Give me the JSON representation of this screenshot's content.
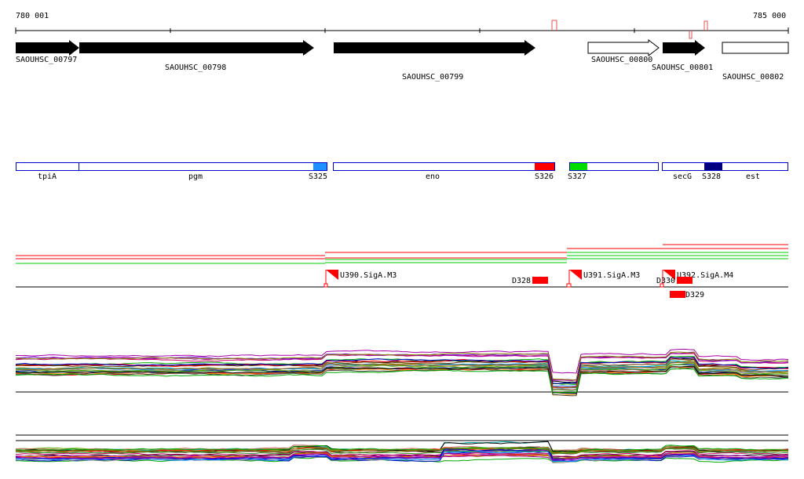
{
  "ruler": {
    "start_label": "780 001",
    "end_label": "785 000"
  },
  "genes": [
    {
      "label": "SAOUHSC_00797",
      "strand": "+",
      "filled": true
    },
    {
      "label": "SAOUHSC_00798",
      "strand": "+",
      "filled": true
    },
    {
      "label": "SAOUHSC_00799",
      "strand": "+",
      "filled": true
    },
    {
      "label": "SAOUHSC_00800",
      "strand": "+",
      "filled": false
    },
    {
      "label": "SAOUHSC_00801",
      "strand": "+",
      "filled": true
    },
    {
      "label": "SAOUHSC_00802",
      "strand": "+",
      "filled": false
    }
  ],
  "segments": [
    {
      "label": "tpiA"
    },
    {
      "label": "pgm"
    },
    {
      "label": "eno"
    },
    {
      "label": "secG"
    },
    {
      "label": "est"
    }
  ],
  "markers": [
    {
      "label": "S325",
      "color": "#1e90ff"
    },
    {
      "label": "S326",
      "color": "#ff0000"
    },
    {
      "label": "S327",
      "color": "#00dd00"
    },
    {
      "label": "S328",
      "color": "#000080"
    }
  ],
  "promoters": [
    {
      "label": "U390.SigA.M3"
    },
    {
      "label": "U391.SigA.M3"
    },
    {
      "label": "U392.SigA.M4"
    }
  ],
  "terminators": [
    {
      "label": "D328"
    },
    {
      "label": "D330"
    },
    {
      "label": "D329"
    }
  ],
  "colors": {
    "gene_fill": "#000000",
    "segment_outline": "#0000cc",
    "promoter": "#ff0000",
    "terminator": "#ff0000",
    "coverage_red": "#ff0000",
    "coverage_green": "#00cc00"
  }
}
